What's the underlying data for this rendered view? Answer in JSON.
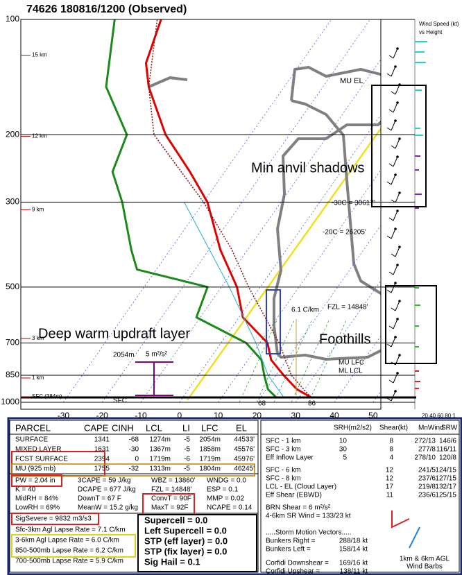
{
  "chart_data": {
    "type": "skewt",
    "title": "74626  180816/1200  (Observed)",
    "log_scale": true,
    "grid": true,
    "xlim": [
      -41,
      52
    ],
    "ylim": [
      1000,
      100
    ],
    "xticks": [
      -30,
      -20,
      -10,
      0,
      10,
      20,
      30,
      40,
      50
    ],
    "yticks": [
      100,
      200,
      300,
      500,
      700,
      850,
      1000
    ],
    "height_ticks": [
      {
        "value": 124,
        "label": "15 km"
      },
      {
        "value": 202,
        "label": "12 km"
      },
      {
        "value": 314,
        "label": "9 km"
      },
      {
        "value": 681,
        "label": "3 km"
      },
      {
        "value": 864,
        "label": "1 km"
      },
      {
        "value": 967,
        "label": "SFC (384m)"
      }
    ],
    "series": [
      {
        "color": "#e00000",
        "x": [
          33,
          28,
          22,
          16,
          12,
          1,
          -6,
          -17,
          -29,
          -39,
          -52,
          -65,
          -70,
          -74
        ],
        "values": [
          970,
          925,
          850,
          775,
          700,
          600,
          500,
          400,
          300,
          250,
          200,
          150,
          130,
          100
        ]
      },
      {
        "color": "#1a8a1a",
        "x": [
          24,
          20.5,
          17,
          13.5,
          6.5,
          -11,
          -13.6,
          -35,
          -40,
          -51,
          -59,
          -62,
          -76,
          -86
        ],
        "values": [
          970,
          925,
          850,
          775,
          700,
          600,
          500,
          450,
          400,
          300,
          250,
          200,
          150,
          100
        ]
      },
      {
        "color": "#8b1a1a",
        "x": [
          33,
          24,
          15,
          -3,
          -14,
          -30,
          -55,
          -65,
          -75
        ],
        "values": [
          970,
          850,
          700,
          500,
          400,
          300,
          200,
          150,
          100
        ]
      },
      {
        "color": "#20b0d0",
        "x": [
          26,
          18,
          9,
          -8,
          -35
        ],
        "values": [
          970,
          850,
          700,
          500,
          300
        ]
      }
    ],
    "annotations": [
      "MU EL",
      "-30C = 30617'",
      "-20C = 26205'",
      "FZL = 14848'",
      "6.1 C/km",
      "MU LFC",
      "ML LCL",
      "2054m",
      "5 m²/s²",
      "SFC",
      "68",
      "86",
      "Min anvil shadows",
      "Deep warm updraft layer",
      "Foothills",
      "Wind Speed (kt)",
      "vs Height",
      "20 40 60 80 1"
    ]
  },
  "parcel_table": {
    "header": [
      "PARCEL",
      "CAPE",
      "CINH",
      "LCL",
      "LI",
      "LFC",
      "EL"
    ],
    "rows": [
      [
        "SURFACE",
        "1341",
        "-68",
        "1274m",
        "-5",
        "2054m",
        "44533'"
      ],
      [
        "MIXED LAYER",
        "1631",
        "-30",
        "1367m",
        "-5",
        "1858m",
        "45576'"
      ],
      [
        "FCST SURFACE",
        "2394",
        "0",
        "1719m",
        "-6",
        "1719m",
        "45976'"
      ],
      [
        "MU  (925 mb)",
        "1755",
        "-32",
        "1313m",
        "-5",
        "1804m",
        "46245'"
      ]
    ]
  },
  "thermo_indices": [
    [
      "PW = 2.04 in",
      "3CAPE = 59 J/kg",
      "WBZ = 13860'",
      "WNDG = 0.0"
    ],
    [
      "K = 40",
      "DCAPE = 677 J/kg",
      "FZL = 14848'",
      "ESP = 0.1"
    ],
    [
      "MidRH = 84%",
      "DownT = 67 F",
      "ConvT = 90F",
      "MMP = 0.02"
    ],
    [
      "LowRH = 69%",
      "MeanW = 15.2 g/kg",
      "MaxT = 92F",
      "NCAPE = 0.14"
    ]
  ],
  "sig_severe": "SigSevere = 9832 m3/s3",
  "lapse_rates": [
    "Sfc-3km Agl Lapse Rate = 7.1 C/km",
    "3-6km Agl Lapse Rate = 6.0 C/km",
    "850-500mb Lapse Rate = 6.2 C/km",
    "700-500mb Lapse Rate = 5.9 C/km"
  ],
  "composite_indices": [
    "Supercell = 0.0",
    "Left Supercell = 0.0",
    "STP (eff layer) = 0.0",
    "STP (fix layer) = 0.0",
    "Sig Hail = 0.1"
  ],
  "kinematic_table": {
    "header": [
      "SRH(m2/s2)",
      "Shear(kt)",
      "MnWind",
      "SRW"
    ],
    "rows": [
      [
        "SFC - 1 km",
        "10",
        "8",
        "272/13",
        "146/6"
      ],
      [
        "SFC - 3 km",
        "30",
        "8",
        "277/8",
        "116/11"
      ],
      [
        "Eff Inflow Layer",
        "5",
        "4",
        "278/10",
        "120/8"
      ],
      [
        "SFC - 6 km",
        null,
        "12",
        "241/5",
        "124/15"
      ],
      [
        "SFC - 8 km",
        null,
        "12",
        "237/6",
        "127/15"
      ],
      [
        "LCL - EL (Cloud Layer)",
        null,
        "17",
        "219/8",
        "132/17"
      ],
      [
        "Eff Shear (EBWD)",
        null,
        "11",
        "236/6",
        "125/15"
      ]
    ]
  },
  "brn_shear": "BRN Shear = 6 m²/s²",
  "sr_wind": "4-6km SR Wind =  133/23 kt",
  "storm_motion_title": ".....Storm Motion Vectors.....",
  "storm_motion": [
    [
      "Bunkers Right =",
      "288/18 kt"
    ],
    [
      "Bunkers Left =",
      "158/14 kt"
    ],
    [
      "Corfidi Downshear =",
      "169/16 kt"
    ],
    [
      "Corfidi Upshear =",
      "138/11 kt"
    ]
  ],
  "hodograph_caption": [
    "1km & 6km AGL",
    "Wind Barbs"
  ]
}
